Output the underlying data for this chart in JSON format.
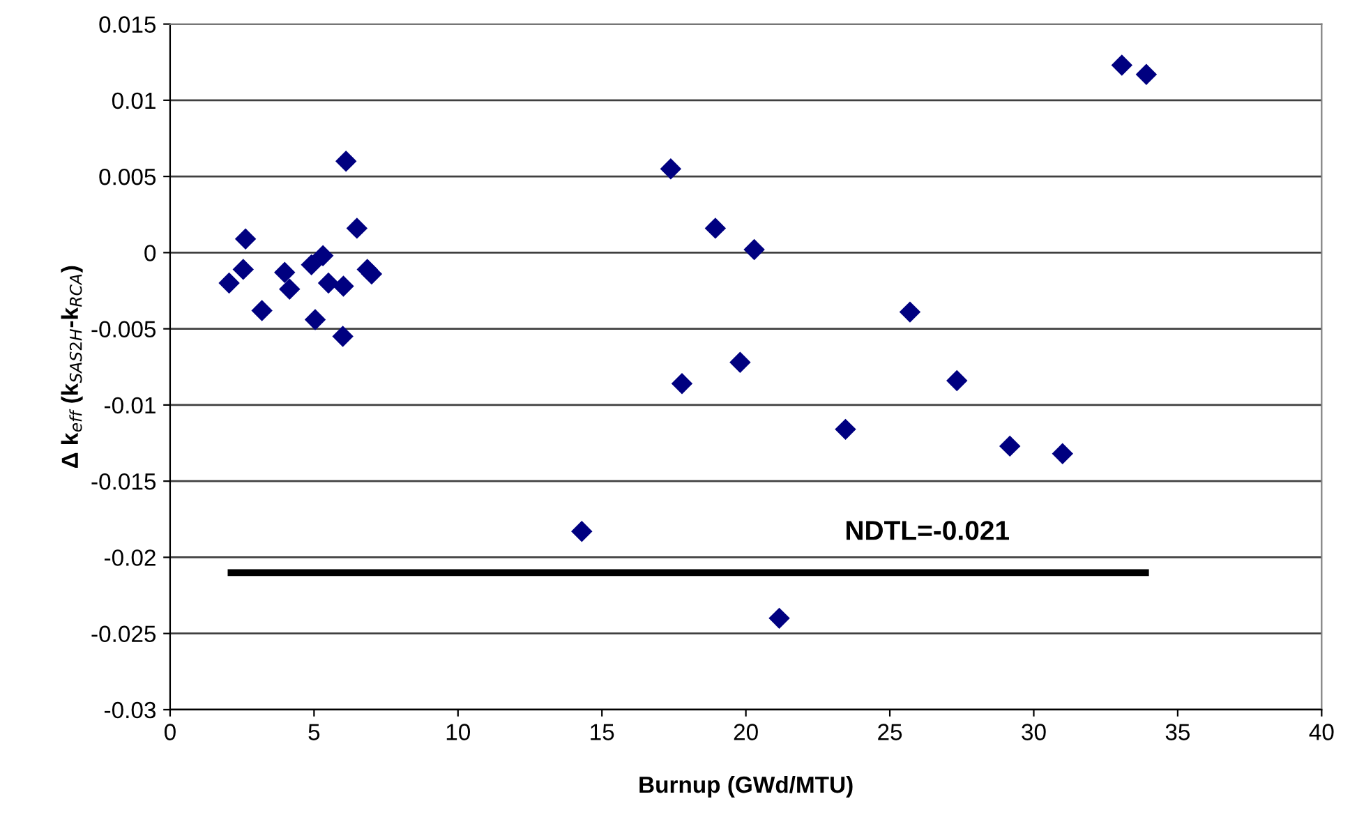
{
  "chart_data": {
    "type": "scatter",
    "xlabel": "Burnup (GWd/MTU)",
    "ylabel": "Δ k$_{eff}$ (k$_{SAS2H}$-k$_{RCA}$)",
    "xlim": [
      0,
      40
    ],
    "xticks": [
      0,
      5,
      10,
      15,
      20,
      25,
      30,
      35,
      40
    ],
    "ylim": [
      -0.03,
      0.015
    ],
    "yticks": [
      0.015,
      0.01,
      0.005,
      0,
      -0.005,
      -0.01,
      -0.015,
      -0.02,
      -0.025,
      -0.03
    ],
    "grid": "y",
    "legend": false,
    "series": [
      {
        "marker": "diamond",
        "color": "#000080",
        "x": [
          6.11,
          2.62,
          6.49,
          2.54,
          2.05,
          3.98,
          4.15,
          3.19,
          4.91,
          5.31,
          5.5,
          6.02,
          6.85,
          7.0,
          5.04,
          6.0,
          17.39,
          18.94,
          20.29,
          25.7,
          17.78,
          19.8,
          27.33,
          23.46,
          29.17,
          31.0,
          14.3,
          21.16,
          33.06,
          33.91
        ],
        "values": [
          0.006,
          0.0009,
          0.0016,
          -0.0011,
          -0.002,
          -0.0013,
          -0.0024,
          -0.0038,
          -0.0008,
          -0.0002,
          -0.002,
          -0.0022,
          -0.0011,
          -0.0014,
          -0.0044,
          -0.0055,
          0.0055,
          0.0016,
          0.0002,
          -0.0039,
          -0.0086,
          -0.0072,
          -0.0084,
          -0.0116,
          -0.0127,
          -0.0132,
          -0.0183,
          -0.024,
          0.0123,
          0.0117
        ]
      },
      {
        "type": "line",
        "marker": "none",
        "color": "#000000",
        "x": [
          2,
          34
        ],
        "values": [
          -0.021,
          -0.021
        ]
      }
    ],
    "annotations": [
      {
        "text": "NDTL=-0.021",
        "x": 26.3,
        "y": -0.021
      }
    ]
  }
}
